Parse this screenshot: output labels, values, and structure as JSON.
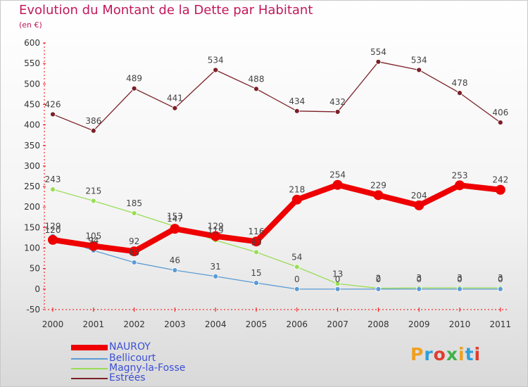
{
  "title": "Evolution du Montant de la Dette par Habitant",
  "unit": "(en €)",
  "logo": "Proxiti",
  "chart_data": {
    "type": "line",
    "title": "Evolution du Montant de la Dette par Habitant",
    "ylabel": "(en €)",
    "xlabel": "",
    "ylim": [
      -50,
      600
    ],
    "yticks": [
      -50,
      0,
      50,
      100,
      150,
      200,
      250,
      300,
      350,
      400,
      450,
      500,
      550,
      600
    ],
    "grid": false,
    "legend_position": "bottom-left",
    "categories": [
      "2000",
      "2001",
      "2002",
      "2003",
      "2004",
      "2005",
      "2006",
      "2007",
      "2008",
      "2009",
      "2010",
      "2011"
    ],
    "series": [
      {
        "name": "NAUROY",
        "color": "#ee0000",
        "values": [
          120,
          105,
          92,
          147,
          129,
          116,
          218,
          254,
          229,
          204,
          253,
          242
        ]
      },
      {
        "name": "Bellicourt",
        "color": "#5b9bd5",
        "values": [
          129,
          94,
          65,
          46,
          31,
          15,
          0,
          0,
          0,
          0,
          0,
          0
        ]
      },
      {
        "name": "Magny-la-Fosse",
        "color": "#99dd55",
        "values": [
          243,
          215,
          185,
          153,
          119,
          90,
          54,
          13,
          2,
          3,
          3,
          3
        ]
      },
      {
        "name": "Estrées",
        "color": "#7b2028",
        "values": [
          426,
          386,
          489,
          441,
          534,
          488,
          434,
          432,
          554,
          534,
          478,
          406
        ]
      }
    ]
  }
}
